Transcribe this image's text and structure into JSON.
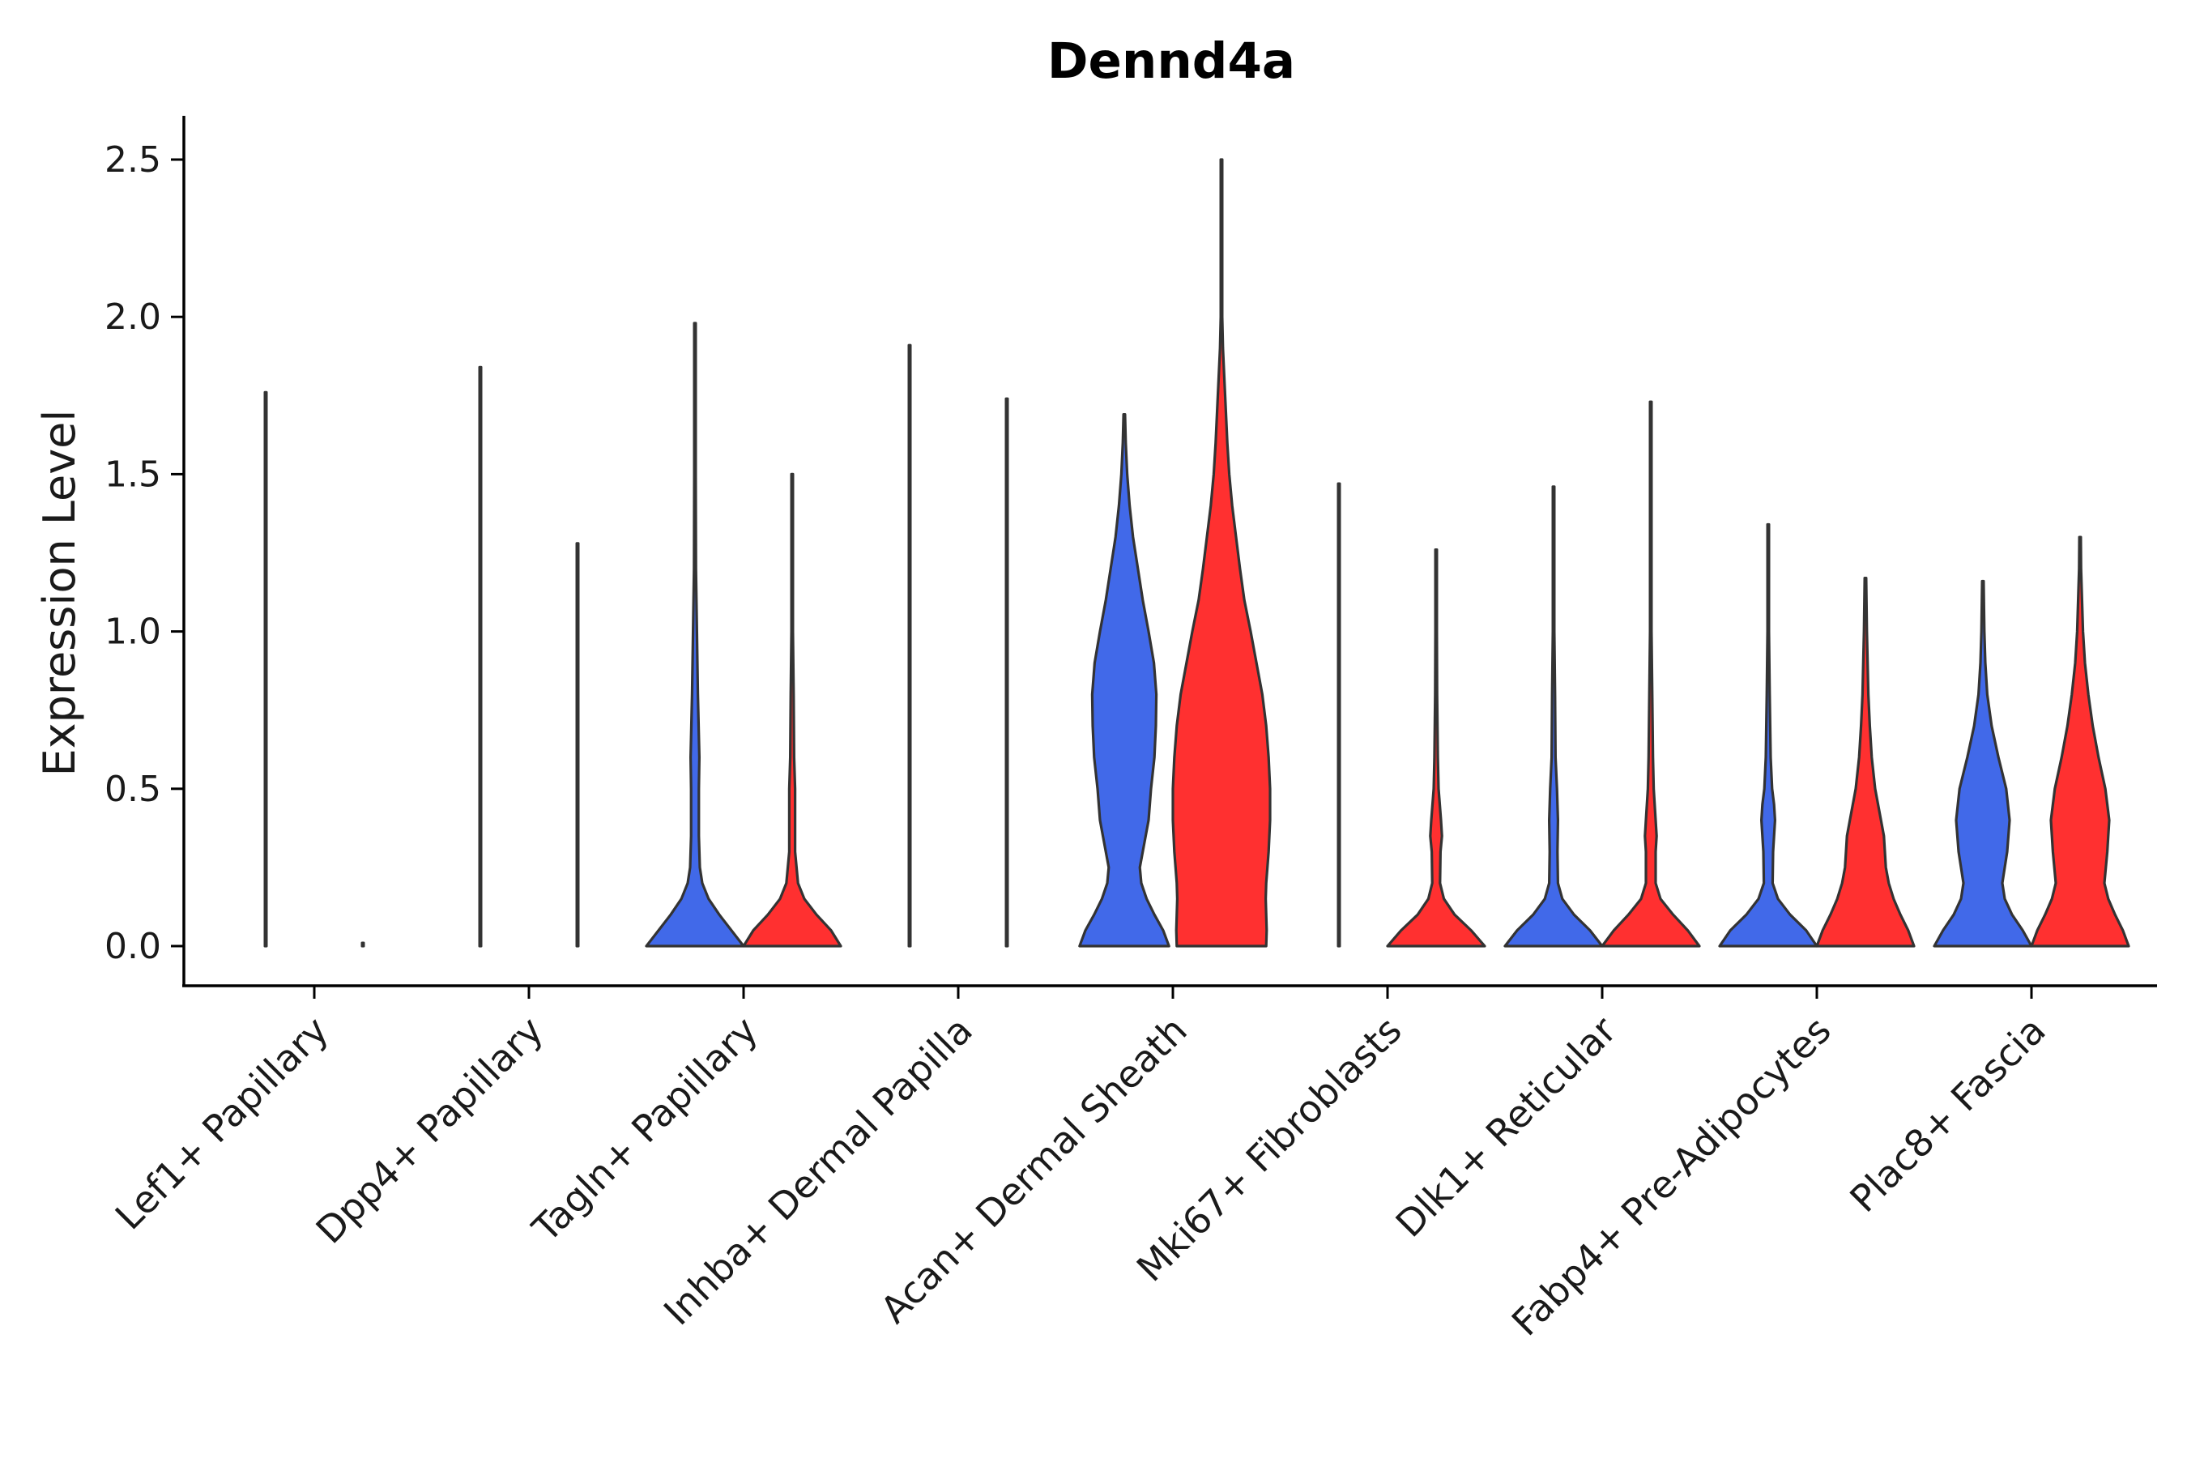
{
  "chart_data": {
    "type": "violin",
    "title": "Dennd4a",
    "xlabel": "",
    "ylabel": "Expression Level",
    "ylim": [
      -0.12,
      2.63
    ],
    "yticks": [
      0.0,
      0.5,
      1.0,
      1.5,
      2.0,
      2.5
    ],
    "ytick_labels": [
      "0.0",
      "0.5",
      "1.0",
      "1.5",
      "2.0",
      "2.5"
    ],
    "group_colors": {
      "group1": "#4169E9",
      "group2": "#FF3030"
    },
    "categories": [
      "Lef1+ Papillary",
      "Dpp4+ Papillary",
      "Tagln+ Papillary",
      "Inhba+ Dermal Papilla",
      "Acan+ Dermal Sheath",
      "Mki67+ Fibroblasts",
      "Dlk1+ Reticular",
      "Fabp4+ Pre-Adipocytes",
      "Plac8+ Fascia"
    ],
    "violins": [
      {
        "category": "Lef1+ Papillary",
        "group": "group1",
        "max": 1.76,
        "profile": [
          [
            0,
            0.003
          ],
          [
            0.01,
            0
          ],
          [
            1.76,
            0
          ]
        ]
      },
      {
        "category": "Lef1+ Papillary",
        "group": "group2",
        "max": 0.0,
        "profile": [
          [
            0,
            0.003
          ],
          [
            0.01,
            0
          ]
        ]
      },
      {
        "category": "Dpp4+ Papillary",
        "group": "group1",
        "max": 1.84,
        "profile": [
          [
            0,
            0.003
          ],
          [
            0.01,
            0
          ],
          [
            1.84,
            0
          ]
        ]
      },
      {
        "category": "Dpp4+ Papillary",
        "group": "group2",
        "max": 1.28,
        "profile": [
          [
            0,
            0.003
          ],
          [
            0.01,
            0
          ],
          [
            1.28,
            0
          ]
        ]
      },
      {
        "category": "Tagln+ Papillary",
        "group": "group1",
        "max": 1.98,
        "profile": [
          [
            0,
            1
          ],
          [
            0.05,
            0.75
          ],
          [
            0.1,
            0.5
          ],
          [
            0.15,
            0.28
          ],
          [
            0.2,
            0.15
          ],
          [
            0.25,
            0.1
          ],
          [
            0.35,
            0.08
          ],
          [
            0.5,
            0.08
          ],
          [
            0.6,
            0.09
          ],
          [
            0.8,
            0.06
          ],
          [
            1.0,
            0.04
          ],
          [
            1.2,
            0.02
          ],
          [
            1.5,
            0.01
          ],
          [
            1.98,
            0
          ]
        ]
      },
      {
        "category": "Tagln+ Papillary",
        "group": "group2",
        "max": 1.5,
        "profile": [
          [
            0,
            1
          ],
          [
            0.05,
            0.8
          ],
          [
            0.1,
            0.5
          ],
          [
            0.15,
            0.25
          ],
          [
            0.2,
            0.12
          ],
          [
            0.3,
            0.06
          ],
          [
            0.4,
            0.06
          ],
          [
            0.5,
            0.06
          ],
          [
            0.6,
            0.04
          ],
          [
            0.8,
            0.03
          ],
          [
            1.0,
            0.015
          ],
          [
            1.2,
            0.008
          ],
          [
            1.5,
            0
          ]
        ]
      },
      {
        "category": "Inhba+ Dermal Papilla",
        "group": "group1",
        "max": 1.91,
        "profile": [
          [
            0,
            0.003
          ],
          [
            0.01,
            0
          ],
          [
            1.91,
            0
          ]
        ]
      },
      {
        "category": "Inhba+ Dermal Papilla",
        "group": "group2",
        "max": 1.74,
        "profile": [
          [
            0,
            0.003
          ],
          [
            0.01,
            0
          ],
          [
            1.74,
            0
          ]
        ]
      },
      {
        "category": "Acan+ Dermal Sheath",
        "group": "group1",
        "max": 1.69,
        "profile": [
          [
            0,
            0.92
          ],
          [
            0.05,
            0.8
          ],
          [
            0.1,
            0.62
          ],
          [
            0.15,
            0.46
          ],
          [
            0.2,
            0.35
          ],
          [
            0.25,
            0.32
          ],
          [
            0.3,
            0.38
          ],
          [
            0.4,
            0.5
          ],
          [
            0.5,
            0.55
          ],
          [
            0.6,
            0.62
          ],
          [
            0.7,
            0.65
          ],
          [
            0.8,
            0.66
          ],
          [
            0.9,
            0.61
          ],
          [
            1.0,
            0.5
          ],
          [
            1.1,
            0.38
          ],
          [
            1.2,
            0.28
          ],
          [
            1.3,
            0.18
          ],
          [
            1.4,
            0.11
          ],
          [
            1.5,
            0.06
          ],
          [
            1.6,
            0.03
          ],
          [
            1.69,
            0
          ]
        ]
      },
      {
        "category": "Acan+ Dermal Sheath",
        "group": "group2",
        "max": 2.51,
        "profile": [
          [
            0,
            0.92
          ],
          [
            0.05,
            0.93
          ],
          [
            0.1,
            0.92
          ],
          [
            0.15,
            0.91
          ],
          [
            0.2,
            0.92
          ],
          [
            0.3,
            0.97
          ],
          [
            0.4,
            1.0
          ],
          [
            0.5,
            1.0
          ],
          [
            0.6,
            0.97
          ],
          [
            0.7,
            0.92
          ],
          [
            0.8,
            0.84
          ],
          [
            0.9,
            0.72
          ],
          [
            1.0,
            0.6
          ],
          [
            1.1,
            0.47
          ],
          [
            1.2,
            0.38
          ],
          [
            1.3,
            0.3
          ],
          [
            1.4,
            0.22
          ],
          [
            1.5,
            0.16
          ],
          [
            1.6,
            0.12
          ],
          [
            1.7,
            0.09
          ],
          [
            1.8,
            0.06
          ],
          [
            1.9,
            0.03
          ],
          [
            2.0,
            0.01
          ],
          [
            2.5,
            0
          ]
        ]
      },
      {
        "category": "Mki67+ Fibroblasts",
        "group": "group1",
        "max": 1.47,
        "profile": [
          [
            0,
            0.003
          ],
          [
            0.01,
            0
          ],
          [
            1.47,
            0
          ]
        ]
      },
      {
        "category": "Mki67+ Fibroblasts",
        "group": "group2",
        "max": 1.26,
        "profile": [
          [
            0,
            1
          ],
          [
            0.05,
            0.72
          ],
          [
            0.1,
            0.38
          ],
          [
            0.15,
            0.16
          ],
          [
            0.2,
            0.08
          ],
          [
            0.3,
            0.09
          ],
          [
            0.35,
            0.12
          ],
          [
            0.4,
            0.1
          ],
          [
            0.5,
            0.05
          ],
          [
            0.6,
            0.035
          ],
          [
            0.8,
            0.02
          ],
          [
            1.0,
            0.01
          ],
          [
            1.26,
            0
          ]
        ]
      },
      {
        "category": "Dlk1+ Reticular",
        "group": "group1",
        "max": 1.46,
        "profile": [
          [
            0,
            1
          ],
          [
            0.05,
            0.75
          ],
          [
            0.1,
            0.42
          ],
          [
            0.15,
            0.18
          ],
          [
            0.2,
            0.09
          ],
          [
            0.3,
            0.08
          ],
          [
            0.4,
            0.09
          ],
          [
            0.5,
            0.07
          ],
          [
            0.6,
            0.04
          ],
          [
            0.8,
            0.03
          ],
          [
            1.0,
            0.015
          ],
          [
            1.2,
            0.008
          ],
          [
            1.46,
            0
          ]
        ]
      },
      {
        "category": "Dlk1+ Reticular",
        "group": "group2",
        "max": 1.73,
        "profile": [
          [
            0,
            1
          ],
          [
            0.05,
            0.76
          ],
          [
            0.1,
            0.46
          ],
          [
            0.15,
            0.2
          ],
          [
            0.2,
            0.1
          ],
          [
            0.3,
            0.1
          ],
          [
            0.35,
            0.12
          ],
          [
            0.4,
            0.1
          ],
          [
            0.5,
            0.06
          ],
          [
            0.6,
            0.045
          ],
          [
            0.8,
            0.03
          ],
          [
            1.0,
            0.015
          ],
          [
            1.2,
            0.008
          ],
          [
            1.73,
            0
          ]
        ]
      },
      {
        "category": "Fabp4+ Pre-Adipocytes",
        "group": "group1",
        "max": 1.34,
        "profile": [
          [
            0,
            1
          ],
          [
            0.05,
            0.78
          ],
          [
            0.1,
            0.45
          ],
          [
            0.15,
            0.2
          ],
          [
            0.2,
            0.09
          ],
          [
            0.3,
            0.1
          ],
          [
            0.4,
            0.14
          ],
          [
            0.45,
            0.12
          ],
          [
            0.5,
            0.08
          ],
          [
            0.6,
            0.05
          ],
          [
            0.8,
            0.03
          ],
          [
            1.0,
            0.015
          ],
          [
            1.34,
            0
          ]
        ]
      },
      {
        "category": "Fabp4+ Pre-Adipocytes",
        "group": "group2",
        "max": 1.17,
        "profile": [
          [
            0,
            1
          ],
          [
            0.05,
            0.88
          ],
          [
            0.1,
            0.72
          ],
          [
            0.15,
            0.58
          ],
          [
            0.2,
            0.48
          ],
          [
            0.25,
            0.42
          ],
          [
            0.3,
            0.4
          ],
          [
            0.35,
            0.38
          ],
          [
            0.4,
            0.32
          ],
          [
            0.5,
            0.2
          ],
          [
            0.6,
            0.13
          ],
          [
            0.7,
            0.09
          ],
          [
            0.8,
            0.06
          ],
          [
            1.0,
            0.03
          ],
          [
            1.17,
            0
          ]
        ]
      },
      {
        "category": "Plac8+ Fascia",
        "group": "group1",
        "max": 1.16,
        "profile": [
          [
            0,
            1
          ],
          [
            0.05,
            0.82
          ],
          [
            0.1,
            0.6
          ],
          [
            0.15,
            0.45
          ],
          [
            0.2,
            0.4
          ],
          [
            0.3,
            0.5
          ],
          [
            0.4,
            0.55
          ],
          [
            0.5,
            0.48
          ],
          [
            0.6,
            0.32
          ],
          [
            0.7,
            0.18
          ],
          [
            0.8,
            0.09
          ],
          [
            0.9,
            0.05
          ],
          [
            1.0,
            0.03
          ],
          [
            1.16,
            0
          ]
        ]
      },
      {
        "category": "Plac8+ Fascia",
        "group": "group2",
        "max": 1.3,
        "profile": [
          [
            0,
            1
          ],
          [
            0.05,
            0.88
          ],
          [
            0.1,
            0.72
          ],
          [
            0.15,
            0.58
          ],
          [
            0.2,
            0.5
          ],
          [
            0.3,
            0.56
          ],
          [
            0.4,
            0.6
          ],
          [
            0.5,
            0.52
          ],
          [
            0.6,
            0.38
          ],
          [
            0.7,
            0.26
          ],
          [
            0.8,
            0.17
          ],
          [
            0.9,
            0.1
          ],
          [
            1.0,
            0.06
          ],
          [
            1.1,
            0.04
          ],
          [
            1.2,
            0.02
          ],
          [
            1.3,
            0
          ]
        ]
      }
    ]
  }
}
